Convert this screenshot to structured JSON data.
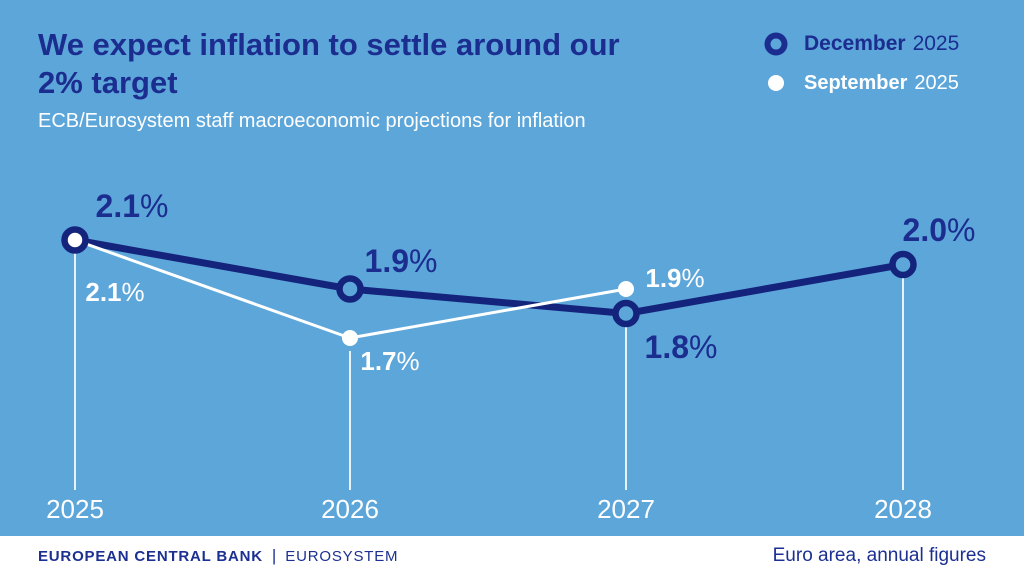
{
  "colors": {
    "background": "#5da6da",
    "navy_line": "#14247c",
    "navy_text": "#1b2d8f",
    "white": "#ffffff",
    "gridline": "rgba(255,255,255,0.85)",
    "footer_background": "#ffffff",
    "footer_text": "#1b3092"
  },
  "header": {
    "title_lines": [
      "We expect inflation to settle around our",
      "2% target"
    ],
    "subtitle": "ECB/Eurosystem staff macroeconomic projections for inflation"
  },
  "legend": {
    "items": [
      {
        "marker": "ring-icon",
        "label_bold": "December",
        "label_rest": "2025"
      },
      {
        "marker": "dot-icon",
        "label_bold": "September",
        "label_rest": "2025"
      }
    ]
  },
  "footer": {
    "brand_bold": "EUROPEAN CENTRAL BANK",
    "brand_separator": "|",
    "brand_rest": "EUROSYSTEM",
    "note": "Euro area, annual figures"
  },
  "chart_data": {
    "type": "line",
    "categories": [
      "2025",
      "2026",
      "2027",
      "2028"
    ],
    "series": [
      {
        "name": "December 2025",
        "marker": "ring",
        "color": "#14247c",
        "values": [
          2.1,
          1.9,
          1.8,
          2.0
        ]
      },
      {
        "name": "September 2025",
        "marker": "dot",
        "color": "#ffffff",
        "values": [
          2.1,
          1.7,
          1.9,
          null
        ]
      }
    ],
    "unit": "%",
    "value_labels": true,
    "ylim": [
      1.5,
      2.3
    ],
    "grid": "vertical-tick-lines",
    "legend_position": "top-right",
    "xlabel": "",
    "ylabel": ""
  }
}
